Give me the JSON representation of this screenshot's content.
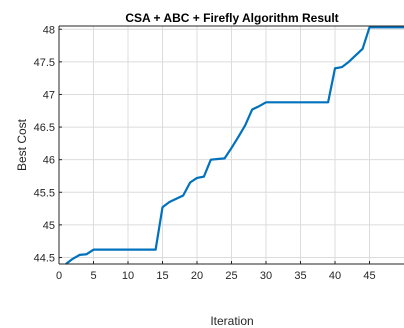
{
  "chart_data": {
    "type": "line",
    "title": "CSA + ABC + Firefly  Algorithm Result",
    "xlabel": "Iteration",
    "ylabel": "Best Cost",
    "xlim": [
      0,
      50
    ],
    "ylim": [
      44.4,
      48.05
    ],
    "grid": true,
    "xticks": [
      0,
      5,
      10,
      15,
      20,
      25,
      30,
      35,
      40,
      45
    ],
    "yticks": [
      44.5,
      45,
      45.5,
      46,
      46.5,
      47,
      47.5,
      48
    ],
    "xtick_labels": [
      "0",
      "5",
      "10",
      "15",
      "20",
      "25",
      "30",
      "35",
      "40",
      "45"
    ],
    "ytick_labels": [
      "44.5",
      "45",
      "45.5",
      "46",
      "46.5",
      "47",
      "47.5",
      "48"
    ],
    "series": [
      {
        "color": "#0072BD",
        "x": [
          1,
          2,
          3,
          4,
          5,
          6,
          7,
          8,
          9,
          10,
          11,
          12,
          13,
          14,
          15,
          16,
          17,
          18,
          19,
          20,
          21,
          22,
          23,
          24,
          25,
          26,
          27,
          28,
          29,
          30,
          31,
          32,
          33,
          34,
          35,
          36,
          37,
          38,
          39,
          40,
          41,
          42,
          43,
          44,
          45,
          46,
          47,
          48,
          49,
          50
        ],
        "y": [
          44.4,
          44.48,
          44.54,
          44.55,
          44.62,
          44.62,
          44.62,
          44.62,
          44.62,
          44.62,
          44.62,
          44.62,
          44.62,
          44.62,
          45.27,
          45.35,
          45.4,
          45.45,
          45.65,
          45.72,
          45.74,
          46.0,
          46.01,
          46.02,
          46.18,
          46.35,
          46.53,
          46.77,
          46.82,
          46.88,
          46.88,
          46.88,
          46.88,
          46.88,
          46.88,
          46.88,
          46.88,
          46.88,
          46.88,
          47.4,
          47.42,
          47.5,
          47.6,
          47.7,
          48.03,
          48.03,
          48.03,
          48.03,
          48.03,
          48.03
        ]
      }
    ]
  }
}
